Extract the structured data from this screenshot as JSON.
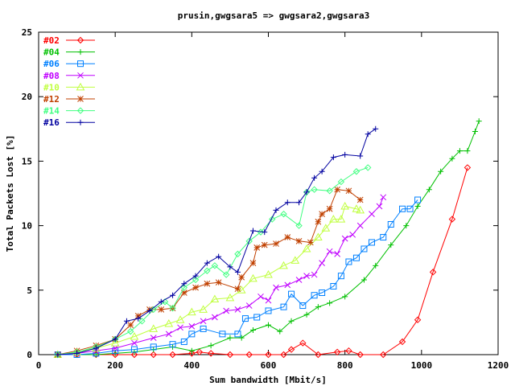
{
  "chart_data": {
    "type": "line",
    "title": "prusin,gwgsara5 => gwgsara2,gwgsara3",
    "xlabel": "Sum bandwidth [Mbit/s]",
    "ylabel": "Total Packets Lost [%]",
    "xlim": [
      0,
      1200
    ],
    "ylim": [
      0,
      25
    ],
    "xticks": [
      0,
      200,
      400,
      600,
      800,
      1000,
      1200
    ],
    "yticks": [
      0,
      5,
      10,
      15,
      20,
      25
    ],
    "grid": false,
    "legend_position": "top-left",
    "series": [
      {
        "name": "#02",
        "color": "#ff0000",
        "marker": "diamond",
        "points": [
          [
            50,
            0
          ],
          [
            100,
            0
          ],
          [
            150,
            0
          ],
          [
            200,
            0
          ],
          [
            250,
            0
          ],
          [
            300,
            0
          ],
          [
            350,
            0
          ],
          [
            400,
            0.1
          ],
          [
            420,
            0.2
          ],
          [
            450,
            0.1
          ],
          [
            500,
            0
          ],
          [
            550,
            0
          ],
          [
            600,
            0
          ],
          [
            640,
            0
          ],
          [
            660,
            0.4
          ],
          [
            690,
            0.9
          ],
          [
            730,
            0
          ],
          [
            780,
            0.2
          ],
          [
            810,
            0.3
          ],
          [
            840,
            0
          ],
          [
            900,
            0
          ],
          [
            950,
            1
          ],
          [
            990,
            2.7
          ],
          [
            1030,
            6.4
          ],
          [
            1080,
            10.5
          ],
          [
            1120,
            14.5
          ]
        ]
      },
      {
        "name": "#04",
        "color": "#00c000",
        "marker": "plus",
        "points": [
          [
            50,
            0
          ],
          [
            100,
            0
          ],
          [
            150,
            0
          ],
          [
            200,
            0.1
          ],
          [
            250,
            0.2
          ],
          [
            300,
            0.4
          ],
          [
            350,
            0.6
          ],
          [
            400,
            0.3
          ],
          [
            450,
            0.7
          ],
          [
            500,
            1.3
          ],
          [
            530,
            1.3
          ],
          [
            560,
            1.9
          ],
          [
            600,
            2.3
          ],
          [
            630,
            1.8
          ],
          [
            660,
            2.6
          ],
          [
            700,
            3.1
          ],
          [
            730,
            3.7
          ],
          [
            760,
            4
          ],
          [
            800,
            4.5
          ],
          [
            850,
            5.8
          ],
          [
            880,
            6.9
          ],
          [
            920,
            8.5
          ],
          [
            960,
            10
          ],
          [
            990,
            11.5
          ],
          [
            1020,
            12.8
          ],
          [
            1050,
            14.2
          ],
          [
            1080,
            15.2
          ],
          [
            1100,
            15.8
          ],
          [
            1120,
            15.8
          ],
          [
            1140,
            17.3
          ],
          [
            1150,
            18.1
          ]
        ]
      },
      {
        "name": "#06",
        "color": "#0080ff",
        "marker": "square",
        "points": [
          [
            50,
            0
          ],
          [
            100,
            0
          ],
          [
            150,
            0.1
          ],
          [
            200,
            0.3
          ],
          [
            250,
            0.4
          ],
          [
            300,
            0.6
          ],
          [
            350,
            0.8
          ],
          [
            380,
            1
          ],
          [
            400,
            1.6
          ],
          [
            430,
            2
          ],
          [
            480,
            1.6
          ],
          [
            520,
            1.6
          ],
          [
            540,
            2.8
          ],
          [
            570,
            2.9
          ],
          [
            600,
            3.4
          ],
          [
            640,
            3.7
          ],
          [
            660,
            4.7
          ],
          [
            690,
            3.8
          ],
          [
            720,
            4.6
          ],
          [
            740,
            4.8
          ],
          [
            770,
            5.3
          ],
          [
            790,
            6.1
          ],
          [
            810,
            7.2
          ],
          [
            830,
            7.5
          ],
          [
            850,
            8.2
          ],
          [
            870,
            8.7
          ],
          [
            900,
            9.1
          ],
          [
            920,
            10.1
          ],
          [
            950,
            11.3
          ],
          [
            970,
            11.3
          ],
          [
            990,
            12
          ]
        ]
      },
      {
        "name": "#08",
        "color": "#c000ff",
        "marker": "cross",
        "points": [
          [
            50,
            0
          ],
          [
            100,
            0.1
          ],
          [
            150,
            0.3
          ],
          [
            200,
            0.5
          ],
          [
            250,
            0.9
          ],
          [
            300,
            1.3
          ],
          [
            340,
            1.6
          ],
          [
            370,
            2.1
          ],
          [
            400,
            2.2
          ],
          [
            430,
            2.6
          ],
          [
            460,
            2.9
          ],
          [
            490,
            3.4
          ],
          [
            520,
            3.5
          ],
          [
            550,
            3.8
          ],
          [
            580,
            4.5
          ],
          [
            600,
            4.2
          ],
          [
            620,
            5.2
          ],
          [
            650,
            5.4
          ],
          [
            680,
            5.8
          ],
          [
            700,
            6.1
          ],
          [
            720,
            6.2
          ],
          [
            740,
            7.1
          ],
          [
            760,
            8
          ],
          [
            780,
            7.8
          ],
          [
            800,
            9
          ],
          [
            820,
            9.3
          ],
          [
            840,
            10
          ],
          [
            870,
            10.9
          ],
          [
            890,
            11.5
          ],
          [
            900,
            12.2
          ]
        ]
      },
      {
        "name": "#10",
        "color": "#c0ff40",
        "marker": "triangle",
        "points": [
          [
            50,
            0
          ],
          [
            100,
            0.2
          ],
          [
            150,
            0.5
          ],
          [
            200,
            0.9
          ],
          [
            250,
            1.4
          ],
          [
            300,
            2
          ],
          [
            340,
            2.4
          ],
          [
            370,
            2.7
          ],
          [
            400,
            3.3
          ],
          [
            430,
            3.5
          ],
          [
            460,
            4.3
          ],
          [
            500,
            4.4
          ],
          [
            530,
            5
          ],
          [
            560,
            5.9
          ],
          [
            600,
            6.2
          ],
          [
            640,
            6.9
          ],
          [
            670,
            7.3
          ],
          [
            700,
            8.2
          ],
          [
            730,
            9.1
          ],
          [
            750,
            9.8
          ],
          [
            770,
            10.5
          ],
          [
            790,
            10.5
          ],
          [
            800,
            11.5
          ],
          [
            830,
            11.3
          ],
          [
            840,
            11.2
          ]
        ]
      },
      {
        "name": "#12",
        "color": "#c04000",
        "marker": "star",
        "points": [
          [
            50,
            0
          ],
          [
            100,
            0.3
          ],
          [
            150,
            0.7
          ],
          [
            200,
            1.2
          ],
          [
            240,
            2.3
          ],
          [
            260,
            3
          ],
          [
            290,
            3.5
          ],
          [
            320,
            3.5
          ],
          [
            350,
            3.6
          ],
          [
            380,
            4.8
          ],
          [
            410,
            5.2
          ],
          [
            440,
            5.5
          ],
          [
            470,
            5.6
          ],
          [
            520,
            5.1
          ],
          [
            530,
            6
          ],
          [
            560,
            7.1
          ],
          [
            570,
            8.3
          ],
          [
            590,
            8.5
          ],
          [
            620,
            8.6
          ],
          [
            650,
            9.1
          ],
          [
            680,
            8.8
          ],
          [
            710,
            8.7
          ],
          [
            730,
            10.3
          ],
          [
            740,
            10.9
          ],
          [
            760,
            11.3
          ],
          [
            780,
            12.8
          ],
          [
            810,
            12.7
          ],
          [
            840,
            12
          ]
        ]
      },
      {
        "name": "#14",
        "color": "#40ff80",
        "marker": "diamond",
        "points": [
          [
            50,
            0
          ],
          [
            100,
            0.2
          ],
          [
            150,
            0.6
          ],
          [
            200,
            1.2
          ],
          [
            240,
            1.8
          ],
          [
            270,
            2.6
          ],
          [
            300,
            3.5
          ],
          [
            330,
            4.1
          ],
          [
            350,
            3.6
          ],
          [
            380,
            5.2
          ],
          [
            410,
            5.8
          ],
          [
            440,
            6.5
          ],
          [
            460,
            6.9
          ],
          [
            490,
            6.2
          ],
          [
            520,
            7.8
          ],
          [
            550,
            8.8
          ],
          [
            580,
            9.5
          ],
          [
            610,
            10.5
          ],
          [
            640,
            10.9
          ],
          [
            680,
            10
          ],
          [
            700,
            12.6
          ],
          [
            720,
            12.8
          ],
          [
            760,
            12.7
          ],
          [
            790,
            13.4
          ],
          [
            830,
            14.2
          ],
          [
            860,
            14.5
          ]
        ]
      },
      {
        "name": "#16",
        "color": "#0000a0",
        "marker": "plus",
        "points": [
          [
            50,
            0
          ],
          [
            100,
            0.1
          ],
          [
            150,
            0.5
          ],
          [
            200,
            1.2
          ],
          [
            230,
            2.6
          ],
          [
            260,
            2.8
          ],
          [
            290,
            3.4
          ],
          [
            320,
            4.1
          ],
          [
            350,
            4.6
          ],
          [
            380,
            5.5
          ],
          [
            410,
            6.1
          ],
          [
            440,
            7.1
          ],
          [
            470,
            7.6
          ],
          [
            500,
            6.8
          ],
          [
            520,
            6.4
          ],
          [
            560,
            9.6
          ],
          [
            590,
            9.5
          ],
          [
            620,
            11.2
          ],
          [
            650,
            11.8
          ],
          [
            680,
            11.8
          ],
          [
            700,
            12.6
          ],
          [
            720,
            13.7
          ],
          [
            740,
            14.2
          ],
          [
            770,
            15.3
          ],
          [
            800,
            15.5
          ],
          [
            840,
            15.4
          ],
          [
            860,
            17.1
          ],
          [
            880,
            17.5
          ]
        ]
      }
    ]
  }
}
